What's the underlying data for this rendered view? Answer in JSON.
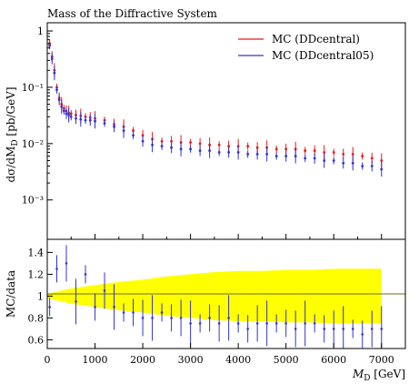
{
  "title": "Mass of the Diffractive System",
  "chart_data": [
    {
      "type": "scatter",
      "panel": "main",
      "title": "Mass of the Diffractive System",
      "xlabel_var": "M",
      "xlabel_sub": "D",
      "xlabel_unit": "[GeV]",
      "ylabel_prefix": "dσ/dM",
      "ylabel_sub": "D",
      "ylabel_unit": "[pb/GeV]",
      "xlim": [
        0,
        7500
      ],
      "ylim": [
        0.0002,
        1.4
      ],
      "yscale": "log",
      "xticks": [
        0,
        1000,
        2000,
        3000,
        4000,
        5000,
        6000,
        7000
      ],
      "xtick_labels": [
        "0",
        "1000",
        "2000",
        "3000",
        "4000",
        "5000",
        "6000",
        "7000"
      ],
      "yticks": [
        1,
        0.1,
        0.01,
        0.001
      ],
      "ytick_labels": [
        "1",
        "10⁻¹",
        "10⁻²",
        "10⁻³"
      ],
      "legend_position": "top-right",
      "series": [
        {
          "name": "MC (DDcentral)",
          "color": "#e41a1c",
          "x": [
            50,
            100,
            150,
            200,
            250,
            300,
            350,
            400,
            450,
            500,
            600,
            700,
            800,
            900,
            1000,
            1200,
            1400,
            1600,
            1800,
            2000,
            2200,
            2400,
            2600,
            2800,
            3000,
            3200,
            3400,
            3600,
            3800,
            4000,
            4200,
            4400,
            4600,
            4800,
            5000,
            5200,
            5400,
            5600,
            5800,
            6000,
            6200,
            6400,
            6600,
            6800,
            7000
          ],
          "y": [
            0.6,
            0.35,
            0.2,
            0.1,
            0.065,
            0.05,
            0.042,
            0.038,
            0.035,
            0.034,
            0.032,
            0.031,
            0.03,
            0.029,
            0.028,
            0.026,
            0.022,
            0.02,
            0.017,
            0.014,
            0.012,
            0.011,
            0.011,
            0.0105,
            0.0105,
            0.01,
            0.0095,
            0.0095,
            0.009,
            0.009,
            0.009,
            0.0085,
            0.0085,
            0.008,
            0.008,
            0.008,
            0.0075,
            0.0075,
            0.007,
            0.007,
            0.0065,
            0.0065,
            0.006,
            0.0055,
            0.005
          ]
        },
        {
          "name": "MC (DDcentral05)",
          "color": "#3333cc",
          "x": [
            50,
            100,
            150,
            200,
            250,
            300,
            350,
            400,
            450,
            500,
            600,
            700,
            800,
            900,
            1000,
            1200,
            1400,
            1600,
            1800,
            2000,
            2200,
            2400,
            2600,
            2800,
            3000,
            3200,
            3400,
            3600,
            3800,
            4000,
            4200,
            4400,
            4600,
            4800,
            5000,
            5200,
            5400,
            5600,
            5800,
            6000,
            6200,
            6400,
            6600,
            6800,
            7000
          ],
          "y": [
            0.55,
            0.32,
            0.18,
            0.09,
            0.06,
            0.045,
            0.038,
            0.034,
            0.032,
            0.03,
            0.028,
            0.027,
            0.026,
            0.026,
            0.025,
            0.023,
            0.02,
            0.017,
            0.014,
            0.011,
            0.0095,
            0.009,
            0.0085,
            0.008,
            0.008,
            0.0075,
            0.0075,
            0.007,
            0.007,
            0.007,
            0.0065,
            0.0065,
            0.0065,
            0.006,
            0.006,
            0.006,
            0.0055,
            0.0055,
            0.005,
            0.005,
            0.0045,
            0.0045,
            0.004,
            0.004,
            0.0035
          ]
        }
      ]
    },
    {
      "type": "scatter",
      "panel": "ratio",
      "ylabel": "MC/data",
      "xlim": [
        0,
        7500
      ],
      "ylim": [
        0.52,
        1.52
      ],
      "yticks": [
        0.6,
        0.8,
        1,
        1.2,
        1.4
      ],
      "ytick_labels": [
        "0.6",
        "0.8",
        "1",
        "1.2",
        "1.4"
      ],
      "band_color": "#ffff00",
      "band": {
        "x": [
          0,
          500,
          1000,
          1500,
          2000,
          2500,
          3000,
          3500,
          4000,
          4500,
          5000,
          5500,
          6000,
          6500,
          7000
        ],
        "half_width": [
          0.02,
          0.07,
          0.1,
          0.13,
          0.15,
          0.18,
          0.2,
          0.22,
          0.23,
          0.23,
          0.24,
          0.24,
          0.25,
          0.25,
          0.25
        ]
      },
      "series": [
        {
          "name": "MC (DDcentral05)",
          "color": "#3333cc",
          "x": [
            50,
            200,
            400,
            600,
            800,
            1000,
            1200,
            1400,
            1600,
            1800,
            2000,
            2200,
            2400,
            2600,
            2800,
            3000,
            3200,
            3400,
            3600,
            3800,
            4000,
            4200,
            4400,
            4600,
            4800,
            5000,
            5200,
            5400,
            5600,
            5800,
            6000,
            6200,
            6400,
            6600,
            6800,
            7000
          ],
          "y": [
            0.9,
            1.25,
            1.3,
            0.95,
            1.2,
            0.9,
            1.05,
            0.9,
            0.85,
            0.85,
            0.8,
            0.8,
            0.85,
            0.8,
            0.8,
            0.75,
            0.75,
            0.8,
            0.75,
            0.8,
            0.75,
            0.7,
            0.75,
            0.75,
            0.75,
            0.75,
            0.7,
            0.75,
            0.75,
            0.7,
            0.7,
            0.7,
            0.7,
            0.65,
            0.7,
            0.7
          ]
        }
      ]
    }
  ]
}
